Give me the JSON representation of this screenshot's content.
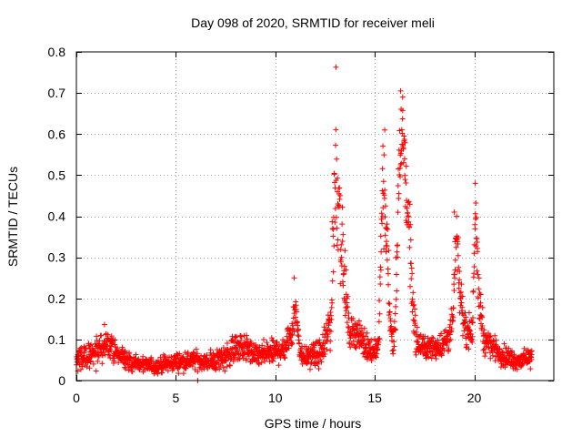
{
  "chart_data": {
    "type": "scatter",
    "title": "Day 098 of 2020, SRMTID for receiver meli",
    "xlabel": "GPS time / hours",
    "ylabel": "SRMTID / TECUs",
    "xlim": [
      0,
      24
    ],
    "ylim": [
      0,
      0.8
    ],
    "xticks": [
      0,
      5,
      10,
      15,
      20
    ],
    "xtick_labels": [
      "0",
      "5",
      "10",
      "15",
      "20"
    ],
    "yticks": [
      0,
      0.1,
      0.2,
      0.3,
      0.4,
      0.5,
      0.6,
      0.7,
      0.8
    ],
    "ytick_labels": [
      "0",
      "0.1",
      "0.2",
      "0.3",
      "0.4",
      "0.5",
      "0.6",
      "0.7",
      "0.8"
    ],
    "grid": true,
    "marker": "+",
    "series": [
      {
        "name": "SRMTID",
        "color": "#ff0000",
        "envelope": {
          "x": [
            0.0,
            0.5,
            1.0,
            1.5,
            2.0,
            2.5,
            3.0,
            4.0,
            5.0,
            6.0,
            6.5,
            7.0,
            7.5,
            8.0,
            8.5,
            9.0,
            10.0,
            10.5,
            10.8,
            11.0,
            11.3,
            11.8,
            12.4,
            12.8,
            13.0,
            13.2,
            13.4,
            13.7,
            14.0,
            14.5,
            14.9,
            15.2,
            15.4,
            15.6,
            15.8,
            16.0,
            16.2,
            16.4,
            16.6,
            16.8,
            16.9,
            17.1,
            17.5,
            18.0,
            18.5,
            18.9,
            19.1,
            19.3,
            19.6,
            19.9,
            20.05,
            20.2,
            20.5,
            21.0,
            21.5,
            22.0,
            22.5,
            22.9
          ],
          "center": [
            0.05,
            0.06,
            0.07,
            0.09,
            0.07,
            0.05,
            0.04,
            0.035,
            0.045,
            0.05,
            0.045,
            0.05,
            0.06,
            0.08,
            0.08,
            0.06,
            0.07,
            0.08,
            0.12,
            0.18,
            0.06,
            0.06,
            0.07,
            0.15,
            0.5,
            0.45,
            0.28,
            0.12,
            0.12,
            0.09,
            0.07,
            0.09,
            0.48,
            0.35,
            0.12,
            0.1,
            0.45,
            0.62,
            0.45,
            0.32,
            0.2,
            0.09,
            0.08,
            0.08,
            0.09,
            0.13,
            0.35,
            0.2,
            0.12,
            0.12,
            0.42,
            0.22,
            0.1,
            0.08,
            0.06,
            0.05,
            0.05,
            0.06
          ],
          "spread": [
            0.03,
            0.035,
            0.04,
            0.05,
            0.03,
            0.025,
            0.02,
            0.02,
            0.025,
            0.025,
            0.02,
            0.03,
            0.035,
            0.04,
            0.04,
            0.03,
            0.035,
            0.04,
            0.05,
            0.06,
            0.03,
            0.03,
            0.04,
            0.08,
            0.2,
            0.18,
            0.12,
            0.04,
            0.04,
            0.04,
            0.03,
            0.04,
            0.14,
            0.12,
            0.05,
            0.04,
            0.16,
            0.09,
            0.15,
            0.1,
            0.07,
            0.04,
            0.03,
            0.03,
            0.04,
            0.05,
            0.07,
            0.07,
            0.04,
            0.05,
            0.06,
            0.08,
            0.04,
            0.03,
            0.03,
            0.025,
            0.025,
            0.03
          ]
        },
        "notable_points": [
          {
            "x": 13.05,
            "y": 0.763
          },
          {
            "x": 16.3,
            "y": 0.705
          },
          {
            "x": 16.4,
            "y": 0.69
          },
          {
            "x": 15.5,
            "y": 0.61
          },
          {
            "x": 20.05,
            "y": 0.48
          },
          {
            "x": 19.0,
            "y": 0.41
          },
          {
            "x": 10.95,
            "y": 0.25
          },
          {
            "x": 6.1,
            "y": 0.0
          }
        ]
      }
    ]
  }
}
